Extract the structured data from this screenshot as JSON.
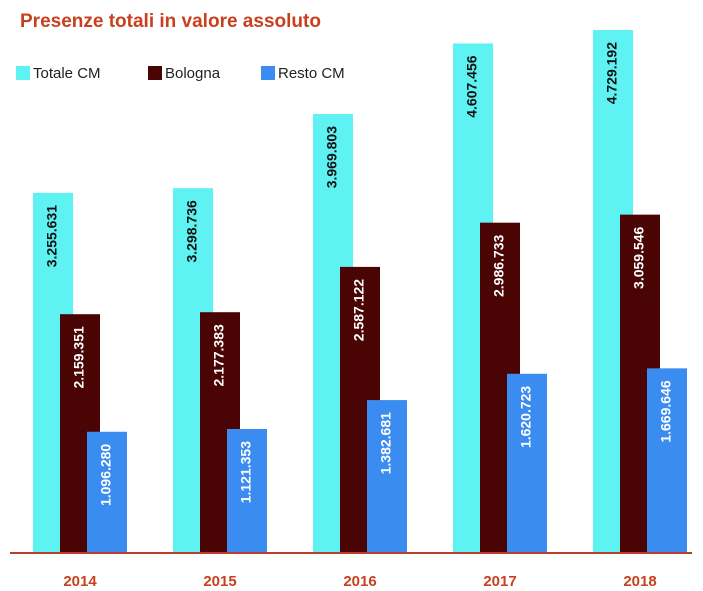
{
  "chart_data": {
    "type": "bar",
    "title": "Presenze totali in valore assoluto",
    "categories": [
      "2014",
      "2015",
      "2016",
      "2017",
      "2018"
    ],
    "series": [
      {
        "name": "Totale CM",
        "color": "#5ef2f2",
        "values": [
          3255631,
          3298736,
          3969803,
          4607456,
          4729192
        ],
        "value_labels": [
          "3.255.631",
          "3.298.736",
          "3.969.803",
          "4.607.456",
          "4.729.192"
        ]
      },
      {
        "name": "Bologna",
        "color": "#4a0404",
        "values": [
          2159351,
          2177383,
          2587122,
          2986733,
          3059546
        ],
        "value_labels": [
          "2.159.351",
          "2.177.383",
          "2.587.122",
          "2.986.733",
          "3.059.546"
        ]
      },
      {
        "name": "Resto CM",
        "color": "#3a8cf0",
        "values": [
          1096280,
          1121353,
          1382681,
          1620723,
          1669646
        ],
        "value_labels": [
          "1.096.280",
          "1.121.353",
          "1.382.681",
          "1.620.723",
          "1.669.646"
        ]
      }
    ],
    "legend": "top-left"
  }
}
